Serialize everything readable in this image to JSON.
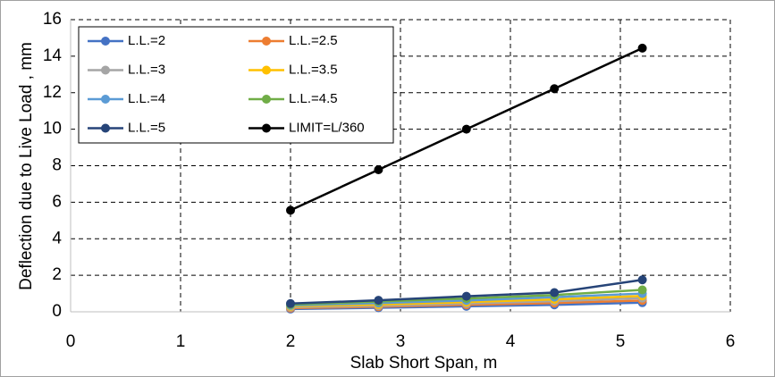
{
  "chart_data": {
    "type": "line",
    "x_label": "Slab Short Span, m",
    "y_label": "Deflection due to Live Load , mm",
    "x": [
      2,
      2.8,
      3.6,
      4.4,
      5.2
    ],
    "series": [
      {
        "name": "L.L.=2",
        "color": "#4472c4",
        "values": [
          0.15,
          0.22,
          0.3,
          0.38,
          0.5
        ]
      },
      {
        "name": "L.L.=2.5",
        "color": "#ed7d31",
        "values": [
          0.2,
          0.28,
          0.38,
          0.48,
          0.62
        ]
      },
      {
        "name": "L.L.=3",
        "color": "#a5a5a5",
        "values": [
          0.25,
          0.33,
          0.45,
          0.58,
          0.75
        ]
      },
      {
        "name": "L.L.=3.5",
        "color": "#ffc000",
        "values": [
          0.3,
          0.4,
          0.53,
          0.68,
          0.87
        ]
      },
      {
        "name": "L.L.=4",
        "color": "#5b9bd5",
        "values": [
          0.35,
          0.48,
          0.62,
          0.8,
          1.0
        ]
      },
      {
        "name": "L.L.=4.5",
        "color": "#70ad47",
        "values": [
          0.4,
          0.56,
          0.73,
          0.92,
          1.2
        ]
      },
      {
        "name": "L.L.=5",
        "color": "#264478",
        "values": [
          0.45,
          0.63,
          0.85,
          1.05,
          1.75
        ]
      },
      {
        "name": "LIMIT=L/360",
        "color": "#000000",
        "values": [
          5.56,
          7.78,
          10,
          12.22,
          14.44
        ]
      }
    ],
    "xlim": [
      0,
      6
    ],
    "xticks": [
      0,
      1,
      2,
      3,
      4,
      5,
      6
    ],
    "ylim": [
      0,
      16
    ],
    "yticks": [
      0,
      2,
      4,
      6,
      8,
      10,
      12,
      14,
      16
    ],
    "grid": true,
    "legend": "upper left"
  }
}
